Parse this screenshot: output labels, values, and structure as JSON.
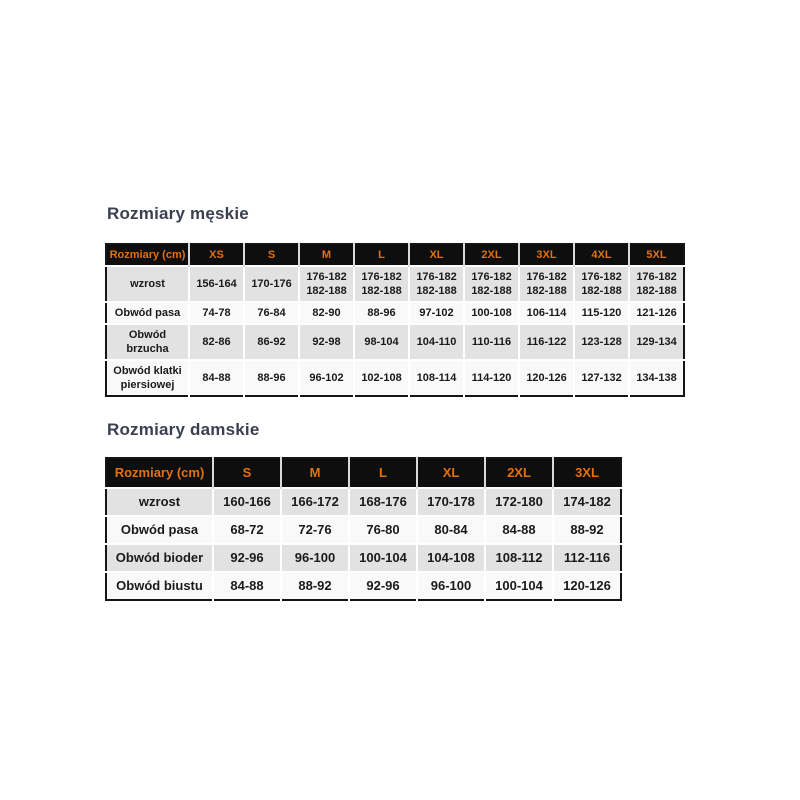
{
  "colors": {
    "accent_orange": "#e2710e",
    "header_bg": "#0e0e0e",
    "row_gray": "#e2e2e2",
    "row_light": "#f9f9f9",
    "title_text": "#3c3f50",
    "body_text": "#1a1a1a"
  },
  "men": {
    "title": "Rozmiary męskie",
    "header": [
      "Rozmiary (cm)",
      "XS",
      "S",
      "M",
      "L",
      "XL",
      "2XL",
      "3XL",
      "4XL",
      "5XL"
    ],
    "rows": [
      {
        "label": "wzrost",
        "values": [
          "156-164",
          "170-176",
          "176-182\n182-188",
          "176-182\n182-188",
          "176-182\n182-188",
          "176-182\n182-188",
          "176-182\n182-188",
          "176-182\n182-188",
          "176-182\n182-188"
        ]
      },
      {
        "label": "Obwód pasa",
        "values": [
          "74-78",
          "76-84",
          "82-90",
          "88-96",
          "97-102",
          "100-108",
          "106-114",
          "115-120",
          "121-126"
        ]
      },
      {
        "label": "Obwód brzucha",
        "values": [
          "82-86",
          "86-92",
          "92-98",
          "98-104",
          "104-110",
          "110-116",
          "116-122",
          "123-128",
          "129-134"
        ]
      },
      {
        "label": "Obwód klatki piersiowej",
        "values": [
          "84-88",
          "88-96",
          "96-102",
          "102-108",
          "108-114",
          "114-120",
          "120-126",
          "127-132",
          "134-138"
        ]
      }
    ]
  },
  "women": {
    "title": "Rozmiary damskie",
    "header": [
      "Rozmiary (cm)",
      "S",
      "M",
      "L",
      "XL",
      "2XL",
      "3XL"
    ],
    "rows": [
      {
        "label": "wzrost",
        "values": [
          "160-166",
          "166-172",
          "168-176",
          "170-178",
          "172-180",
          "174-182"
        ]
      },
      {
        "label": "Obwód pasa",
        "values": [
          "68-72",
          "72-76",
          "76-80",
          "80-84",
          "84-88",
          "88-92"
        ]
      },
      {
        "label": "Obwód bioder",
        "values": [
          "92-96",
          "96-100",
          "100-104",
          "104-108",
          "108-112",
          "112-116"
        ]
      },
      {
        "label": "Obwód biustu",
        "values": [
          "84-88",
          "88-92",
          "92-96",
          "96-100",
          "100-104",
          "120-126"
        ]
      }
    ]
  }
}
